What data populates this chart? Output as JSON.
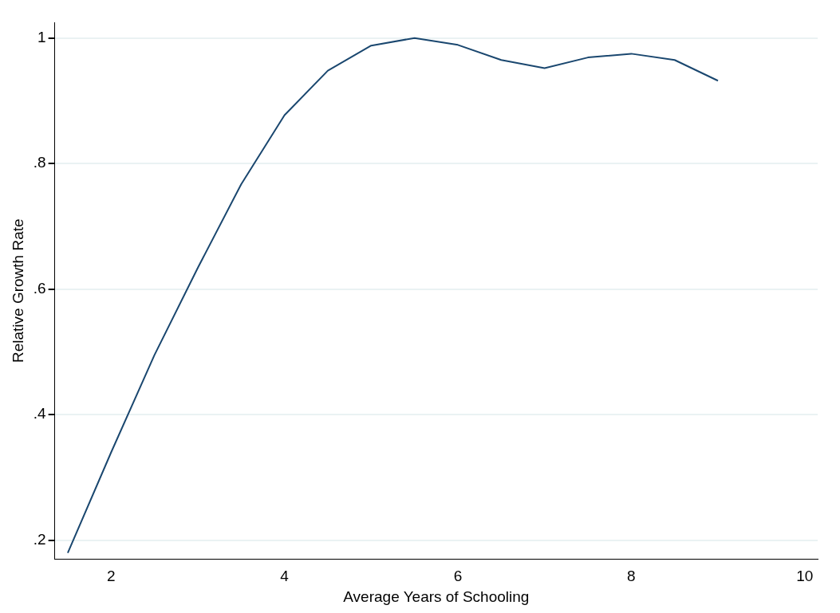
{
  "chart_data": {
    "type": "line",
    "xlabel": "Average Years of Schooling",
    "ylabel": "Relative Growth Rate",
    "x": [
      1.5,
      2,
      2.5,
      3,
      3.5,
      4,
      4.5,
      5,
      5.5,
      6,
      6.5,
      7,
      7.5,
      8,
      8.5,
      9
    ],
    "series": [
      {
        "color": "#1a476f",
        "values": [
          0.18,
          0.34,
          0.495,
          0.634,
          0.767,
          0.877,
          0.948,
          0.988,
          1.0,
          0.989,
          0.965,
          0.952,
          0.969,
          0.975,
          0.965,
          0.932
        ]
      }
    ],
    "xlim": [
      1.35,
      10.15
    ],
    "xticks": [
      2,
      4,
      6,
      8,
      10
    ],
    "ylim": [
      0.17,
      1.025
    ],
    "yticks": [
      {
        "value": 0.2,
        "label": ".2"
      },
      {
        "value": 0.4,
        "label": ".4"
      },
      {
        "value": 0.6,
        "label": ".6"
      },
      {
        "value": 0.8,
        "label": ".8"
      },
      1
    ],
    "grid": "y",
    "legend": false,
    "marker": "none",
    "line_style": "solid"
  }
}
